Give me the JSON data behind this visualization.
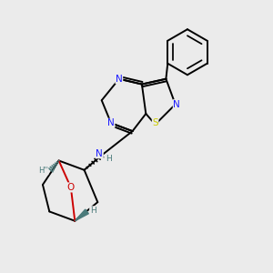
{
  "bg_color": "#ebebeb",
  "atom_colors": {
    "N": "#1a1aff",
    "S": "#cccc00",
    "O": "#cc0000",
    "C": "#000000",
    "H": "#4a7a7a"
  },
  "bond_lw": 1.4,
  "font_size": 7.5
}
